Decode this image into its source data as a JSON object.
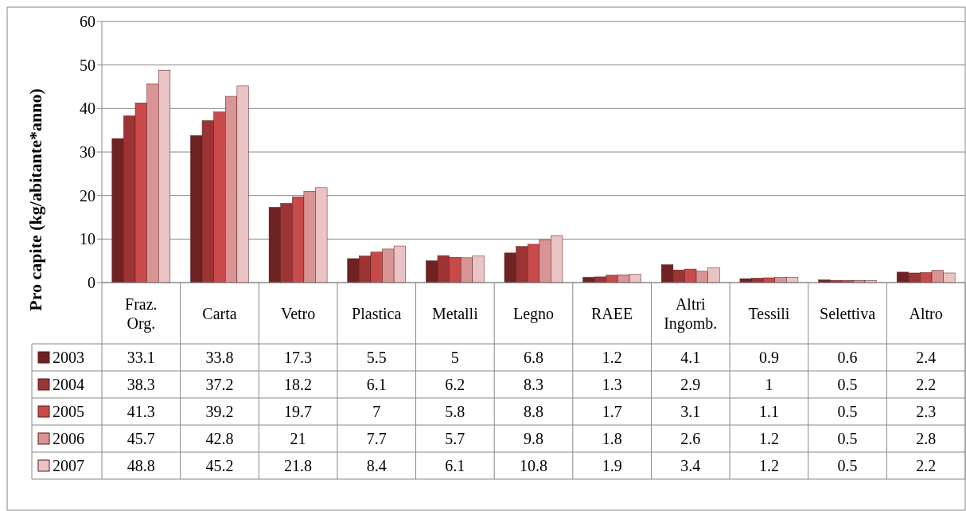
{
  "chart_data": {
    "type": "bar",
    "ylabel": "Pro capite (kg/abitante*anno)",
    "categories": [
      "Fraz. Org.",
      "Carta",
      "Vetro",
      "Plastica",
      "Metalli",
      "Legno",
      "RAEE",
      "Altri Ingomb.",
      "Tessili",
      "Selettiva",
      "Altro"
    ],
    "series": [
      {
        "name": "2003",
        "color": "#6e2222",
        "values": [
          33.1,
          33.8,
          17.3,
          5.5,
          5,
          6.8,
          1.2,
          4.1,
          0.9,
          0.6,
          2.4
        ]
      },
      {
        "name": "2004",
        "color": "#9c3434",
        "values": [
          38.3,
          37.2,
          18.2,
          6.1,
          6.2,
          8.3,
          1.3,
          2.9,
          1,
          0.5,
          2.2
        ]
      },
      {
        "name": "2005",
        "color": "#c94a4a",
        "values": [
          41.3,
          39.2,
          19.7,
          7,
          5.8,
          8.8,
          1.7,
          3.1,
          1.1,
          0.5,
          2.3
        ]
      },
      {
        "name": "2006",
        "color": "#d99595",
        "values": [
          45.7,
          42.8,
          21,
          7.7,
          5.7,
          9.8,
          1.8,
          2.6,
          1.2,
          0.5,
          2.8
        ]
      },
      {
        "name": "2007",
        "color": "#eac4c4",
        "values": [
          48.8,
          45.2,
          21.8,
          8.4,
          6.1,
          10.8,
          1.9,
          3.4,
          1.2,
          0.5,
          2.2
        ]
      }
    ],
    "ylim": [
      0,
      60
    ],
    "yticks": [
      0,
      10,
      20,
      30,
      40,
      50,
      60
    ],
    "grid": "y",
    "legend": "bottom",
    "data_labels": true
  }
}
